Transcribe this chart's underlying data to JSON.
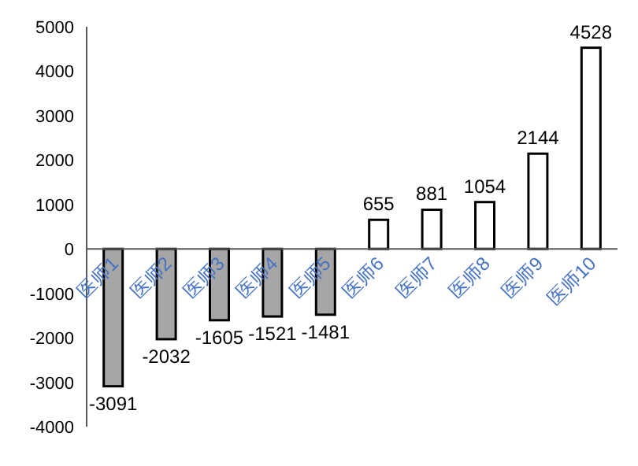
{
  "chart_data": {
    "type": "bar",
    "categories": [
      "医师1",
      "医师2",
      "医师3",
      "医师4",
      "医师5",
      "医师6",
      "医师7",
      "医师8",
      "医师9",
      "医师10"
    ],
    "values": [
      -3091,
      -2032,
      -1605,
      -1521,
      -1481,
      655,
      881,
      1054,
      2144,
      4528
    ],
    "colors": [
      "#a6a6a6",
      "#a6a6a6",
      "#a6a6a6",
      "#a6a6a6",
      "#a6a6a6",
      "#ffffff",
      "#ffffff",
      "#ffffff",
      "#ffffff",
      "#ffffff"
    ],
    "ylim": [
      -4000,
      5000
    ],
    "yticks": [
      -4000,
      -3000,
      -2000,
      -1000,
      0,
      1000,
      2000,
      3000,
      4000,
      5000
    ],
    "data_labels": true,
    "grid": false
  }
}
